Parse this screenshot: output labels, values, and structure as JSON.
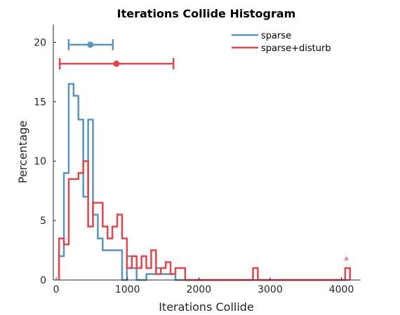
{
  "chart_data": {
    "type": "histogram",
    "title": "Iterations Collide Histogram",
    "xlabel": "Iterations Collide",
    "ylabel": "Percentage",
    "xlim": [
      -40,
      4270
    ],
    "ylim": [
      0,
      21.5
    ],
    "x_ticks": [
      0,
      1000,
      2000,
      3000,
      4000
    ],
    "y_ticks": [
      0,
      5,
      10,
      15,
      20
    ],
    "grid": false,
    "legend_position": "top-right",
    "bin_width": 68,
    "series": [
      {
        "name": "sparse",
        "color": "#5b94c0",
        "bin_start": 40,
        "values": [
          2,
          9,
          16.5,
          15.5,
          13.5,
          7,
          13.5,
          5.5,
          3.5,
          2.5,
          2.5,
          2.5,
          2.5,
          0,
          2,
          1,
          0,
          0,
          0.5,
          0.5,
          1,
          0.5,
          0.5,
          0.5,
          0,
          0,
          0,
          0,
          0,
          0,
          0,
          0,
          0,
          0,
          0,
          0,
          0,
          0,
          0,
          0,
          0,
          0,
          0,
          0,
          0,
          0,
          0,
          0,
          0,
          0,
          0,
          0,
          0,
          0,
          0,
          0,
          0,
          0,
          0,
          0
        ],
        "summary": {
          "mean": 480,
          "lower": 175,
          "upper": 795,
          "y": 19.8
        }
      },
      {
        "name": "sparse+disturb",
        "color": "#e2454b",
        "bin_start": 40,
        "values": [
          3.5,
          3,
          8.5,
          8.5,
          9,
          10,
          4.5,
          6.5,
          6.5,
          4.5,
          3.5,
          4.5,
          5.5,
          3.5,
          1,
          2,
          1,
          2,
          1,
          2.5,
          0.5,
          1,
          1.5,
          0.5,
          1,
          1,
          0,
          0,
          0,
          0,
          0,
          0,
          0,
          0,
          0,
          0,
          0,
          0,
          0,
          0,
          1,
          0,
          0,
          0,
          0,
          0,
          0,
          0,
          0,
          0,
          0,
          0,
          0,
          0,
          0,
          0,
          0,
          0,
          0,
          1
        ],
        "summary": {
          "mean": 845,
          "lower": 50,
          "upper": 1645,
          "y": 18.2
        }
      }
    ],
    "annotation": {
      "text": "*",
      "x": 4070,
      "color": "#e2454b"
    }
  }
}
